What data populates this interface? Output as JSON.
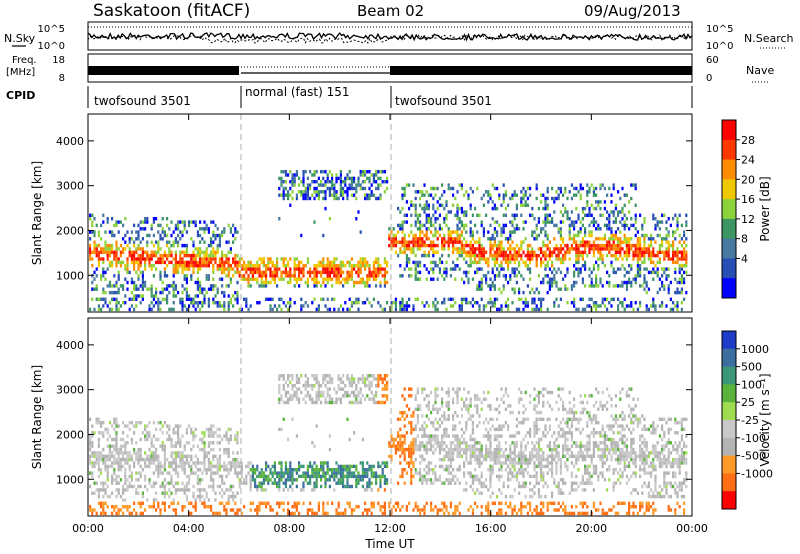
{
  "header": {
    "station": "Saskatoon (fitACF)",
    "beam": "Beam 02",
    "date": "09/Aug/2013"
  },
  "side_labels": {
    "nsky": "N.Sky",
    "nsearch": "N.Search",
    "freq_line1": "Freq.",
    "freq_line2": "[MHz]",
    "nave": "Nave",
    "cpid": "CPID"
  },
  "chart_data": [
    {
      "type": "line",
      "panel": "noise",
      "yticks_left": [
        "10^5",
        "10^0"
      ],
      "yticks_right": [
        "10^5",
        "10^0"
      ],
      "series": [
        {
          "name": "N.Sky",
          "style": "solid"
        },
        {
          "name": "N.Search",
          "style": "dotted"
        }
      ]
    },
    {
      "type": "line",
      "panel": "frequency",
      "yticks_left": [
        "18",
        "8"
      ],
      "yticks_right": [
        "60",
        "0"
      ],
      "ylim_left": [
        8,
        18
      ],
      "ylim_right": [
        0,
        60
      ],
      "series": [
        {
          "name": "Freq.",
          "style": "solid"
        },
        {
          "name": "Nave",
          "style": "dotted"
        }
      ]
    },
    {
      "type": "table",
      "panel": "cpid",
      "segments": [
        {
          "label": "twofsound 3501",
          "start_h": 0,
          "end_h": 6
        },
        {
          "label": "normal (fast) 151",
          "start_h": 6,
          "end_h": 12
        },
        {
          "label": "twofsound 3501",
          "start_h": 12,
          "end_h": 24
        }
      ]
    },
    {
      "type": "heatmap",
      "panel": "power",
      "ylabel": "Slant Range [km]",
      "yticks": [
        1000,
        2000,
        3000,
        4000
      ],
      "ylim": [
        180,
        4600
      ],
      "colorbar_label": "Power [dB]",
      "colorbar_ticks": [
        "28",
        "24",
        "20",
        "16",
        "12",
        "8",
        "4"
      ],
      "colorbar_colors": [
        "#ff0000",
        "#ff3800",
        "#ff8c00",
        "#f0c800",
        "#8cd23c",
        "#3c9664",
        "#4678a0",
        "#2850b4",
        "#0000ff"
      ]
    },
    {
      "type": "heatmap",
      "panel": "velocity",
      "ylabel": "Slant Range [km]",
      "yticks": [
        1000,
        2000,
        3000,
        4000
      ],
      "ylim": [
        180,
        4600
      ],
      "colorbar_label": "Velocity [m s⁻¹]",
      "colorbar_ticks": [
        "1000",
        "500",
        "100",
        "25",
        "-25",
        "-100",
        "-500",
        "-1000"
      ],
      "colorbar_colors": [
        "#1e3cc8",
        "#3c6ea0",
        "#3c9678",
        "#5ab43c",
        "#a0dc50",
        "#c8c8c8",
        "#b4b4b4",
        "#ff9a28",
        "#ff6e14",
        "#ff0000"
      ]
    }
  ],
  "xaxis": {
    "ticks": [
      "00:00",
      "04:00",
      "08:00",
      "12:00",
      "16:00",
      "20:00",
      "00:00"
    ],
    "label": "Time UT"
  }
}
